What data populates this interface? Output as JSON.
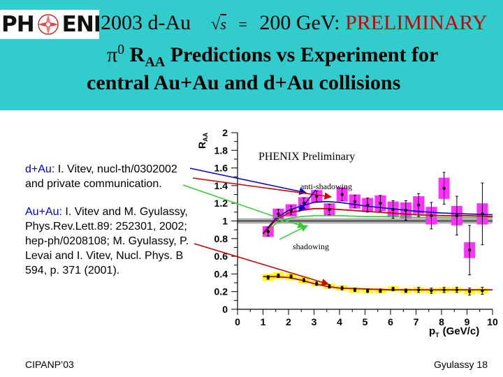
{
  "header": {
    "logo_text_left": "PH",
    "logo_text_right": "ENIX",
    "line1_prefix": "2003 d-Au",
    "line1_sqrt": "s",
    "line1_equals": "=",
    "line1_energy": "200 GeV:",
    "line1_prelim": "PRELIMINARY",
    "line2_pi": "π",
    "line2_pi_sup": "0",
    "line2_R": "R",
    "line2_R_sub": "AA",
    "line2_rest": "Predictions vs Experiment for",
    "line3": "central Au+Au and d+Au collisions"
  },
  "references": {
    "dau_system": "d+Au:",
    "dau_line1": "I. Vitev, nucl-th/0302002",
    "dau_line2": "and private communication.",
    "auau_system": "Au+Au:",
    "auau_line1": "I. Vitev and M. Gyulassy,",
    "auau_line2": "Phys.Rev.Lett.89: 252301, 2002;",
    "auau_line3": "hep-ph/0208108; M. Gyulassy, P.",
    "auau_line4": "Levai and I. Vitev, Nucl. Phys. B",
    "auau_line5": "594, p. 371 (2001)."
  },
  "footer": {
    "left": "CIPANP’03",
    "right": "Gyulassy 18"
  },
  "colors": {
    "header_band": "#33cccc",
    "dau_data": "#ff33ff",
    "auau_data": "#ffff00",
    "anti_shadowing_curve": "#0000cc",
    "shadowing_curve": "#33cc33",
    "auau_curve": "#cc0000",
    "reference_band": "#999999"
  },
  "chart_data": {
    "type": "scatter",
    "ylabel_main": "R",
    "ylabel_sub": "AA",
    "xlabel_main": "p",
    "xlabel_sub": "T",
    "xlabel_unit": "(GeV/c)",
    "xlim": [
      0,
      10
    ],
    "ylim": [
      0,
      2
    ],
    "xticks": [
      "0",
      "1",
      "2",
      "3",
      "4",
      "5",
      "6",
      "7",
      "8",
      "9",
      "10"
    ],
    "yticks": [
      "0",
      "0.2",
      "0.4",
      "0.6",
      "0.8",
      "1",
      "1.2",
      "1.4",
      "1.6",
      "1.8",
      "2"
    ],
    "ytick_values": [
      0,
      0.2,
      0.4,
      0.6,
      0.8,
      1.0,
      1.2,
      1.4,
      1.6,
      1.8,
      2.0
    ],
    "plot_label": "PHENIX Preliminary",
    "annotations": {
      "anti_shadowing": "anti-shadowing",
      "shadowing": "shadowing"
    },
    "reference_band": [
      0.97,
      1.03
    ],
    "series": [
      {
        "key": "dau",
        "x": [
          1.2,
          1.6,
          2.1,
          2.6,
          3.1,
          3.6,
          4.1,
          4.6,
          5.1,
          5.6,
          6.1,
          6.6,
          7.1,
          7.6,
          8.1,
          8.6,
          9.1,
          9.6
        ],
        "y": [
          0.88,
          1.08,
          1.12,
          1.2,
          1.28,
          1.13,
          1.3,
          1.22,
          1.18,
          1.2,
          1.13,
          1.12,
          1.18,
          1.06,
          1.37,
          1.06,
          0.67,
          1.08
        ],
        "err": [
          0.05,
          0.05,
          0.05,
          0.06,
          0.06,
          0.06,
          0.07,
          0.07,
          0.08,
          0.09,
          0.1,
          0.11,
          0.13,
          0.15,
          0.18,
          0.22,
          0.28,
          0.35
        ],
        "box": [
          0.06,
          0.06,
          0.07,
          0.07,
          0.07,
          0.07,
          0.08,
          0.08,
          0.08,
          0.09,
          0.09,
          0.09,
          0.1,
          0.1,
          0.12,
          0.11,
          0.09,
          0.12
        ]
      },
      {
        "key": "auau",
        "x": [
          1.2,
          1.6,
          2.1,
          2.6,
          3.1,
          3.6,
          4.1,
          4.6,
          5.1,
          5.6,
          6.1,
          6.6,
          7.1,
          7.6,
          8.1,
          8.6,
          9.1,
          9.6
        ],
        "y": [
          0.36,
          0.38,
          0.37,
          0.33,
          0.29,
          0.26,
          0.24,
          0.22,
          0.21,
          0.21,
          0.23,
          0.21,
          0.22,
          0.21,
          0.22,
          0.22,
          0.2,
          0.21
        ],
        "err": [
          0.02,
          0.02,
          0.02,
          0.02,
          0.02,
          0.02,
          0.02,
          0.02,
          0.02,
          0.02,
          0.02,
          0.02,
          0.03,
          0.03,
          0.03,
          0.03,
          0.04,
          0.04
        ],
        "box": [
          0.04,
          0.04,
          0.04,
          0.04,
          0.03,
          0.03,
          0.03,
          0.03,
          0.03,
          0.03,
          0.03,
          0.03,
          0.03,
          0.03,
          0.03,
          0.03,
          0.03,
          0.03
        ]
      }
    ],
    "curves": [
      {
        "key": "anti_shadowing",
        "x": [
          1.0,
          1.5,
          2.0,
          2.5,
          3.0,
          3.5,
          4.0,
          5.0,
          6.0,
          7.0,
          8.0,
          9.0,
          10.0
        ],
        "y": [
          0.86,
          1.03,
          1.12,
          1.17,
          1.21,
          1.22,
          1.21,
          1.17,
          1.14,
          1.11,
          1.09,
          1.08,
          1.07
        ]
      },
      {
        "key": "shadowing",
        "x": [
          1.0,
          1.5,
          2.0,
          2.5,
          3.0,
          3.5,
          4.0,
          5.0,
          6.0,
          7.0,
          8.0,
          9.0,
          10.0
        ],
        "y": [
          0.84,
          0.97,
          1.03,
          1.05,
          1.06,
          1.06,
          1.06,
          1.05,
          1.05,
          1.04,
          1.04,
          1.04,
          1.04
        ]
      },
      {
        "key": "dau_theory",
        "x": [
          1.0,
          1.5,
          2.0,
          2.5,
          3.0,
          3.5,
          4.0,
          5.0,
          6.0,
          7.0,
          8.0,
          9.0,
          10.0
        ],
        "y": [
          0.85,
          1.01,
          1.09,
          1.12,
          1.14,
          1.14,
          1.13,
          1.11,
          1.09,
          1.07,
          1.06,
          1.06,
          1.05
        ]
      },
      {
        "key": "auau_theory",
        "x": [
          1.0,
          1.5,
          2.0,
          2.5,
          3.0,
          3.5,
          4.0,
          5.0,
          6.0,
          7.0,
          8.0,
          9.0,
          10.0
        ],
        "y": [
          0.37,
          0.37,
          0.36,
          0.33,
          0.29,
          0.26,
          0.24,
          0.23,
          0.22,
          0.22,
          0.22,
          0.22,
          0.22
        ]
      }
    ]
  }
}
